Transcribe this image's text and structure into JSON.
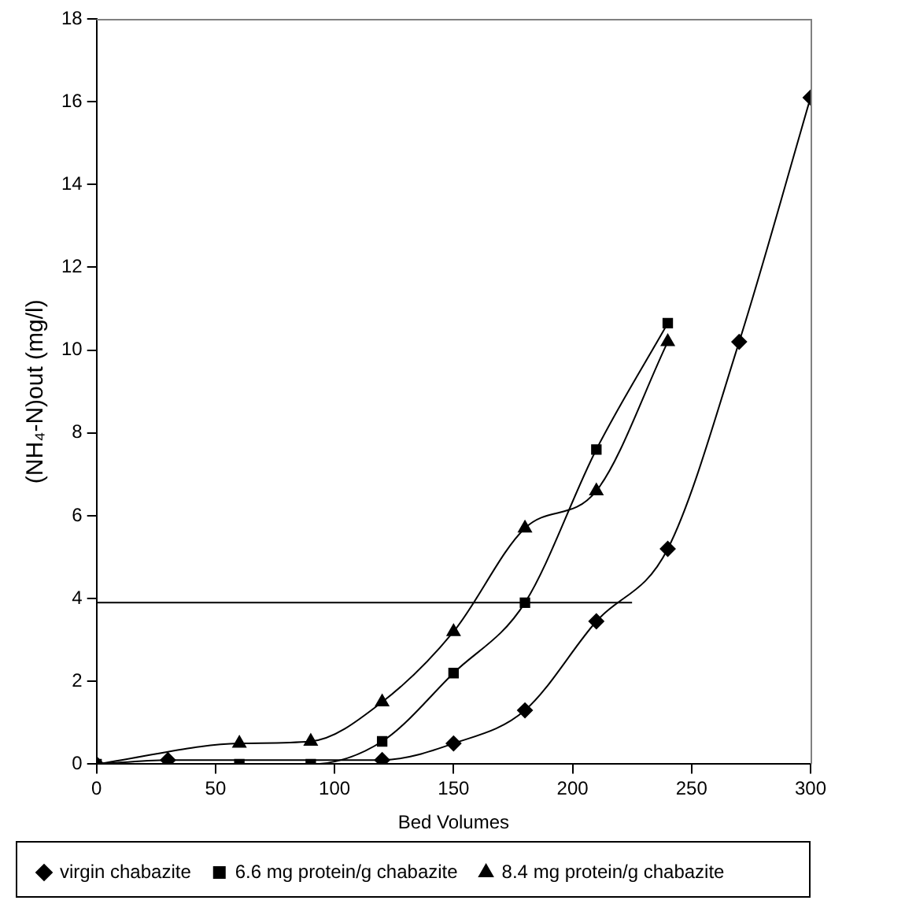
{
  "chart_data": {
    "type": "line",
    "xlabel": "Bed Volumes",
    "ylabel": "(NH₄-N)out (mg/l)",
    "xlim": [
      0,
      300
    ],
    "xticks": [
      0,
      50,
      100,
      150,
      200,
      250,
      300
    ],
    "ylim": [
      0,
      18
    ],
    "yticks": [
      0,
      2,
      4,
      6,
      8,
      10,
      12,
      14,
      16,
      18
    ],
    "grid": false,
    "legend": "bottom",
    "series": [
      {
        "name": "virgin chabazite",
        "color": "#000000",
        "marker": "diamond",
        "x": [
          0,
          30,
          60,
          90,
          120,
          150,
          180,
          210,
          240,
          270,
          300
        ],
        "values": [
          0,
          0.1,
          null,
          null,
          0.1,
          0.5,
          1.3,
          3.45,
          5.2,
          10.2,
          16.1
        ]
      },
      {
        "name": "6.6 mg protein/g chabazite",
        "color": "#000000",
        "marker": "square",
        "x": [
          0,
          30,
          60,
          90,
          120,
          150,
          180,
          210,
          240
        ],
        "values": [
          0,
          0,
          0,
          0,
          0.55,
          2.2,
          3.9,
          7.6,
          10.65
        ]
      },
      {
        "name": "8.4 mg protein/g chabazite",
        "color": "#000000",
        "marker": "triangle",
        "x": [
          0,
          30,
          60,
          90,
          120,
          150,
          180,
          210,
          240
        ],
        "values": [
          0,
          null,
          0.5,
          0.55,
          1.5,
          3.2,
          5.7,
          6.6,
          10.2
        ]
      },
      {
        "color": "#000000",
        "marker": "none",
        "x": [
          0,
          225
        ],
        "values": [
          3.9,
          3.9
        ]
      }
    ]
  }
}
